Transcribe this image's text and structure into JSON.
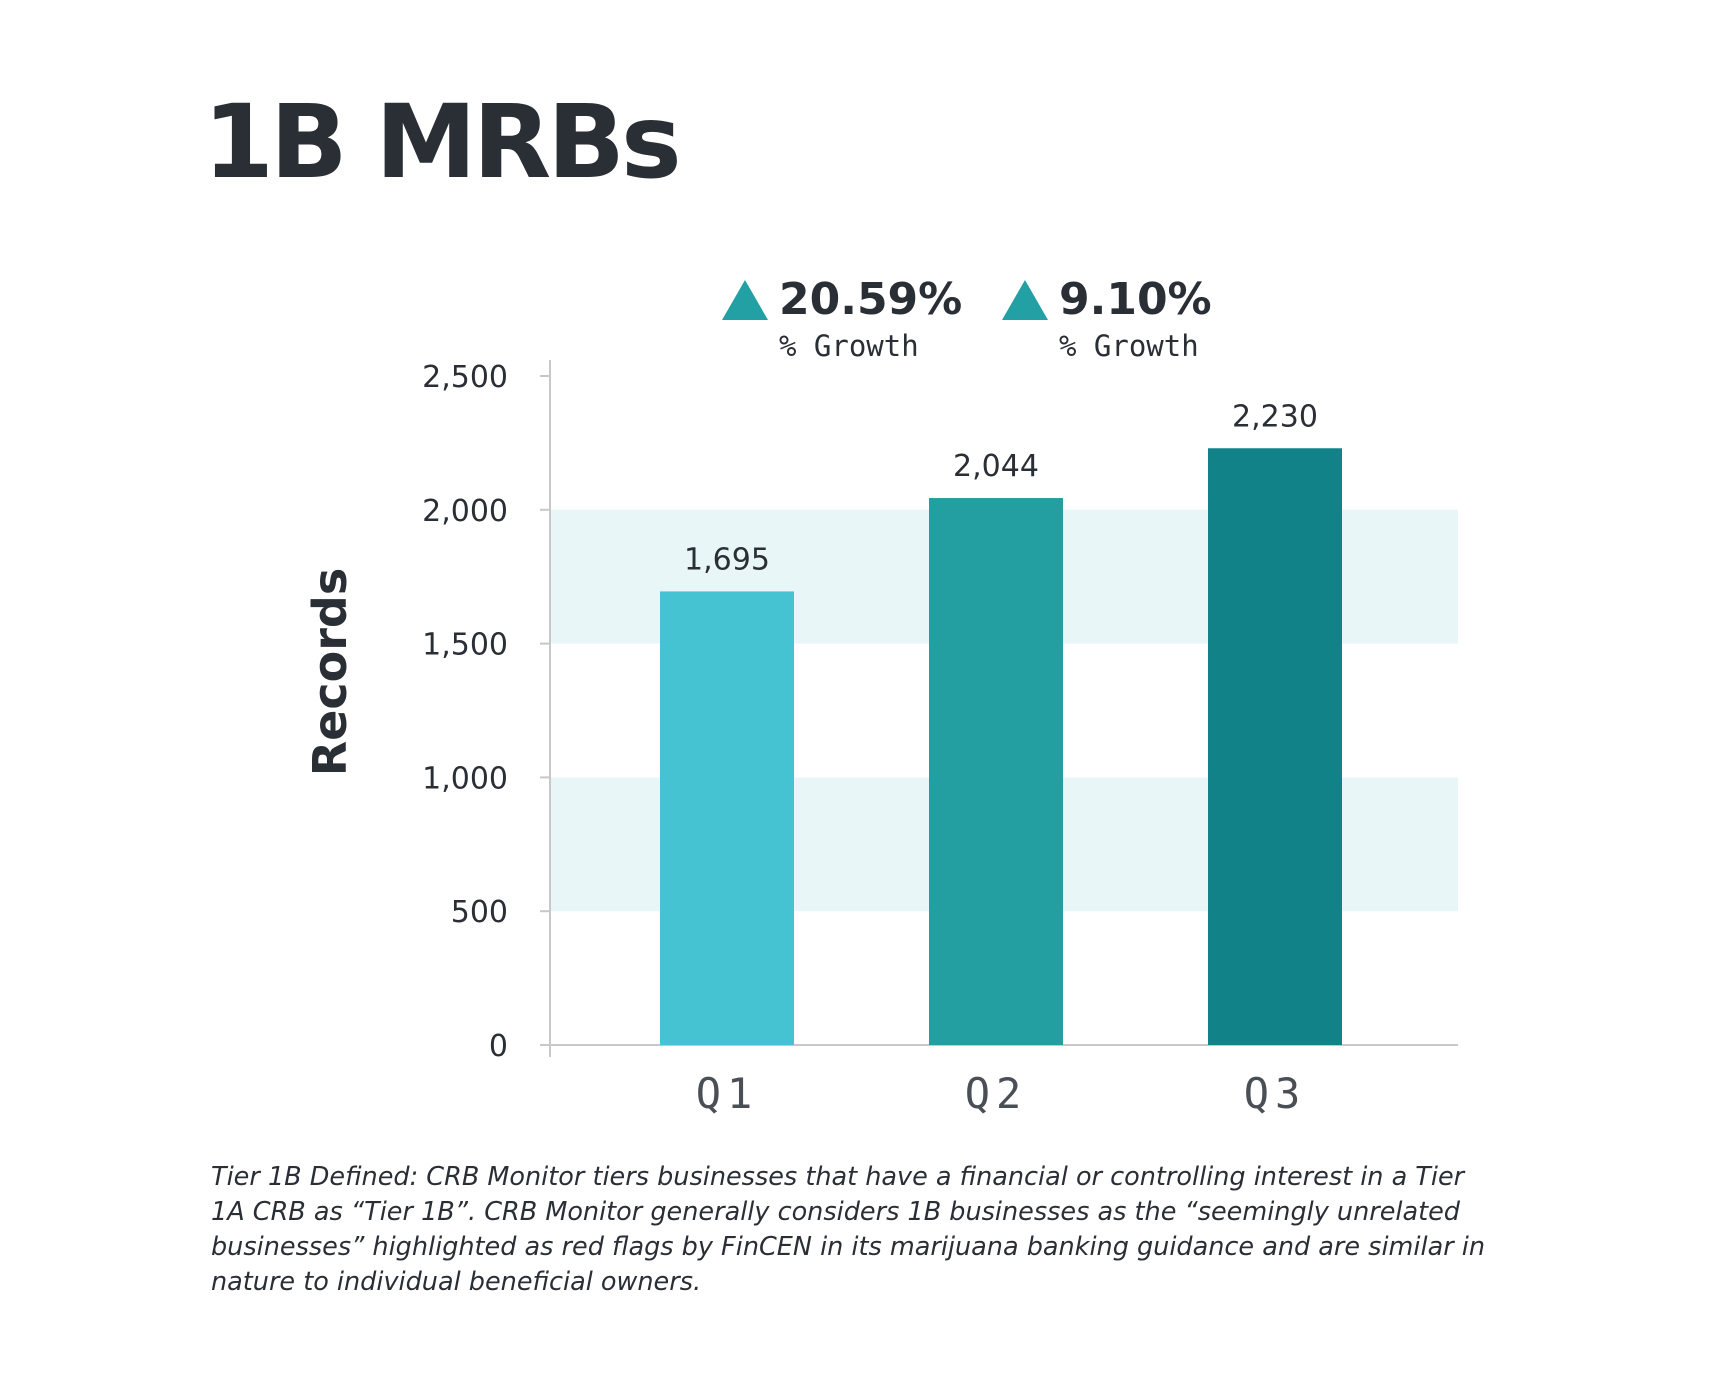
{
  "title": "1B MRBs",
  "colors": {
    "text": "#2a2f36",
    "band": "#e8f6f7",
    "axis": "#c8c8c8",
    "growth_arrow": "#22a0a3"
  },
  "growth": [
    {
      "value": "20.59%",
      "label": "% Growth",
      "icon": "up-triangle-icon"
    },
    {
      "value": "9.10%",
      "label": "% Growth",
      "icon": "up-triangle-icon"
    }
  ],
  "footnote": "Tier 1B Defined: CRB Monitor tiers businesses that have a financial or controlling interest in a Tier 1A CRB as “Tier 1B”. CRB Monitor generally considers 1B businesses as the “seemingly unrelated businesses” highlighted as red flags by FinCEN in its marijuana banking guidance and are similar in nature to individual beneficial owners.",
  "chart_data": {
    "type": "bar",
    "title": "",
    "xlabel": "",
    "ylabel": "Records",
    "categories": [
      "Q1",
      "Q2",
      "Q3"
    ],
    "values": [
      1695,
      2044,
      2230
    ],
    "value_labels": [
      "1,695",
      "2,044",
      "2,230"
    ],
    "bar_colors": [
      "#45c3d3",
      "#239fa1",
      "#118288"
    ],
    "ylim": [
      0,
      2500
    ],
    "yticks": [
      0,
      500,
      1000,
      1500,
      2000,
      2500
    ],
    "ytick_labels": [
      "0",
      "500",
      "1,000",
      "1,500",
      "2,000",
      "2,500"
    ],
    "grid": false,
    "alternating_bands": true,
    "legend": "none"
  }
}
